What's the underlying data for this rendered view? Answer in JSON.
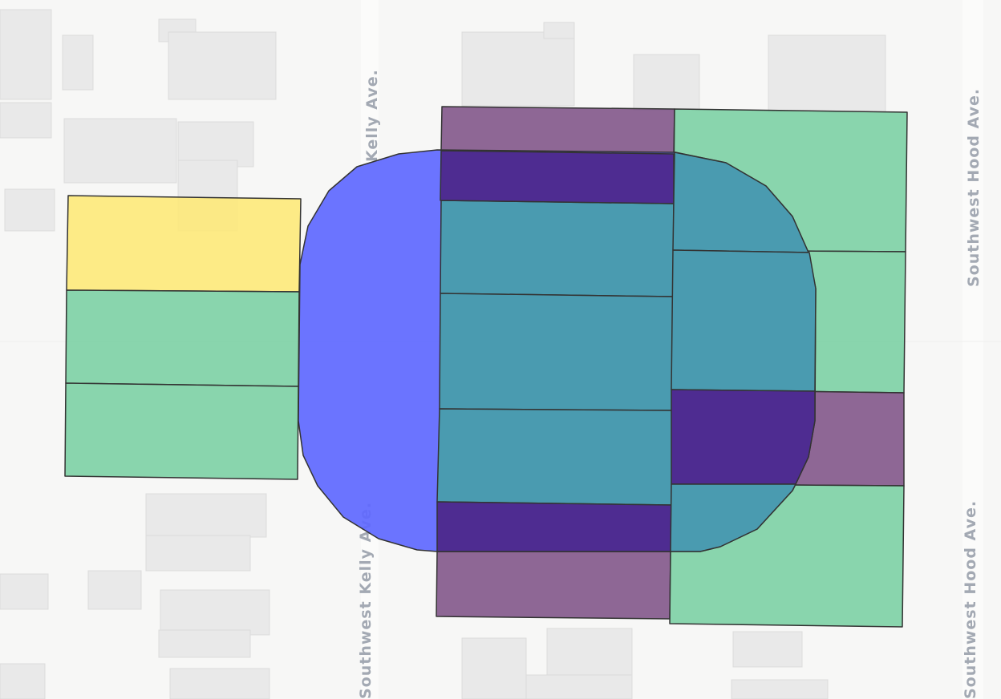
{
  "map": {
    "street_labels": {
      "kelly_top": "Kelly Ave.",
      "kelly_bottom": "Southwest Kelly Ave.",
      "hood_top": "Southwest Hood Ave.",
      "hood_bottom": "Southwest Hood Ave."
    },
    "colors": {
      "background": "#f7f7f6",
      "street": "#fbfbfa",
      "building": "#e9e9e9",
      "buffer_blue": "#5e68ff",
      "parcel_teal": "#4a9bb0",
      "parcel_green": "#7fd1a6",
      "parcel_yellow": "#fde97a",
      "parcel_dark_purple": "#4e2c91",
      "parcel_mauve": "#845a8c",
      "outline": "#333333"
    }
  }
}
